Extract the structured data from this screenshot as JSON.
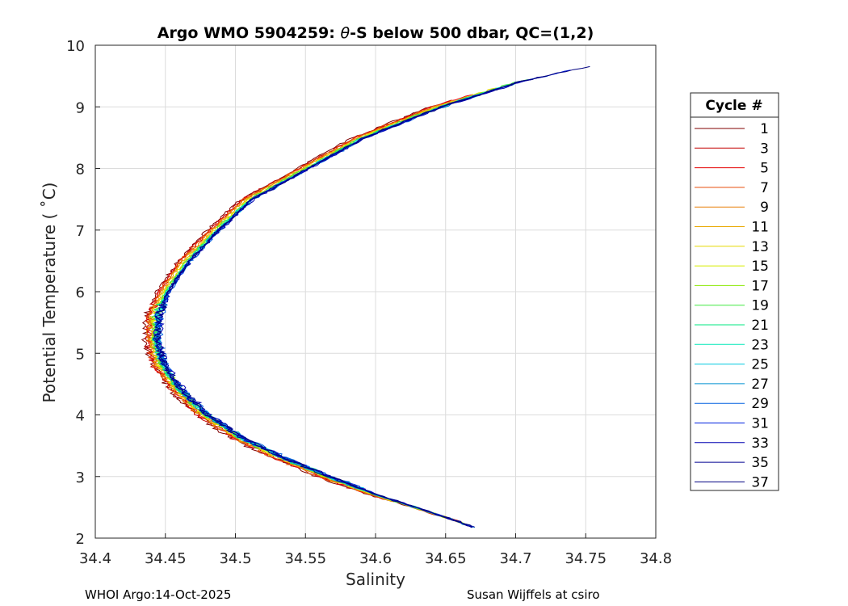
{
  "chart_data": {
    "type": "line",
    "title_prefix": "Argo WMO 5904259: ",
    "title_theta": "θ",
    "title_suffix": "-S below 500 dbar,  QC=(1,2)",
    "xlabel": "Salinity",
    "ylabel": "Potential Temperature ( ˚C)",
    "xlim": [
      34.4,
      34.8
    ],
    "ylim": [
      2,
      10
    ],
    "xticks": [
      "34.4",
      "34.45",
      "34.5",
      "34.55",
      "34.6",
      "34.65",
      "34.7",
      "34.75",
      "34.8"
    ],
    "yticks": [
      "2",
      "3",
      "4",
      "5",
      "6",
      "7",
      "8",
      "9",
      "10"
    ],
    "grid": true,
    "legend_title": "Cycle #",
    "legend_position": "outside-right",
    "reference_curve": {
      "theta": [
        2.18,
        2.3,
        2.5,
        2.7,
        3.0,
        3.3,
        3.6,
        4.0,
        4.4,
        4.8,
        5.2,
        5.6,
        6.0,
        6.5,
        7.0,
        7.5,
        8.0,
        8.5,
        9.0,
        9.4,
        9.66
      ],
      "salinity": [
        34.67,
        34.655,
        34.628,
        34.6,
        34.565,
        34.533,
        34.505,
        34.478,
        34.46,
        34.447,
        34.442,
        34.443,
        34.45,
        34.465,
        34.486,
        34.51,
        34.55,
        34.59,
        34.645,
        34.7,
        34.75
      ]
    },
    "series": [
      {
        "name": "1",
        "color": "#800000",
        "s_offset": -0.006,
        "t_end": 9.0
      },
      {
        "name": "3",
        "color": "#c40000",
        "s_offset": -0.005,
        "t_end": 9.1
      },
      {
        "name": "5",
        "color": "#e50000",
        "s_offset": -0.004,
        "t_end": 9.2
      },
      {
        "name": "7",
        "color": "#e84e0a",
        "s_offset": -0.004,
        "t_end": 9.0
      },
      {
        "name": "9",
        "color": "#e8800a",
        "s_offset": -0.003,
        "t_end": 9.1
      },
      {
        "name": "11",
        "color": "#e8a800",
        "s_offset": -0.002,
        "t_end": 9.2
      },
      {
        "name": "13",
        "color": "#e6d800",
        "s_offset": -0.001,
        "t_end": 9.3
      },
      {
        "name": "15",
        "color": "#d8ee00",
        "s_offset": 0.0,
        "t_end": 9.2
      },
      {
        "name": "17",
        "color": "#8ae800",
        "s_offset": 0.001,
        "t_end": 9.4
      },
      {
        "name": "19",
        "color": "#40e840",
        "s_offset": 0.0,
        "t_end": 9.45
      },
      {
        "name": "21",
        "color": "#00e880",
        "s_offset": 0.0015,
        "t_end": 9.3
      },
      {
        "name": "23",
        "color": "#00e8b8",
        "s_offset": 0.001,
        "t_end": 9.35
      },
      {
        "name": "25",
        "color": "#00c8e0",
        "s_offset": 0.002,
        "t_end": 9.3
      },
      {
        "name": "27",
        "color": "#0090d0",
        "s_offset": 0.002,
        "t_end": 9.4
      },
      {
        "name": "29",
        "color": "#0060e0",
        "s_offset": 0.003,
        "t_end": 9.5
      },
      {
        "name": "31",
        "color": "#0020e0",
        "s_offset": 0.002,
        "t_end": 9.6
      },
      {
        "name": "33",
        "color": "#0000b0",
        "s_offset": 0.003,
        "t_end": 9.45
      },
      {
        "name": "35",
        "color": "#000090",
        "s_offset": 0.002,
        "t_end": 9.5
      },
      {
        "name": "37",
        "color": "#000080",
        "s_offset": 0.002,
        "t_end": 9.66
      }
    ]
  },
  "footer_left": "WHOI Argo:14-Oct-2025",
  "footer_right": "Susan Wijffels at csiro"
}
